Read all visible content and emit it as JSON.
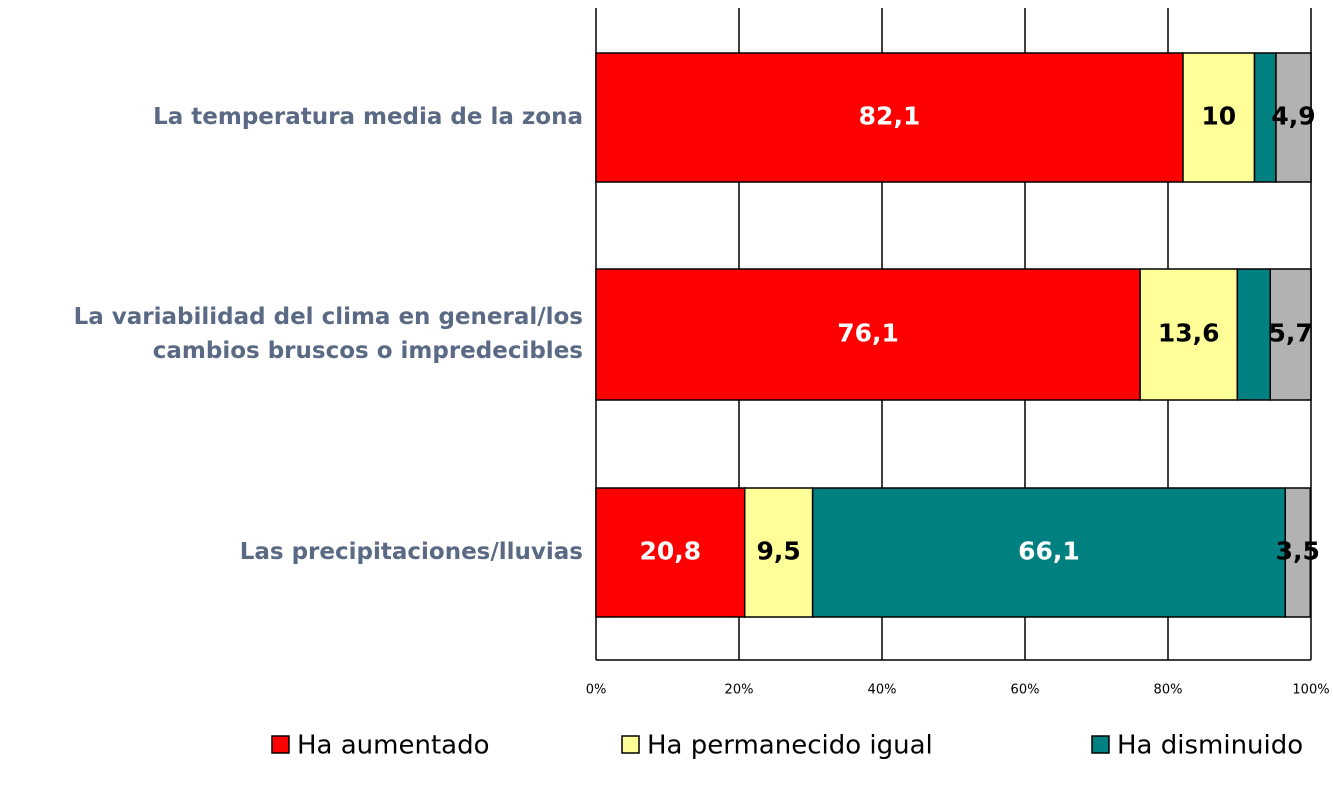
{
  "chart_data": {
    "type": "stacked-bar-horizontal",
    "categories": [
      "La temperatura media de la zona",
      "La variabilidad del clima en general/los cambios bruscos o impredecibles",
      "Las precipitaciones/lluvias"
    ],
    "category_lines": [
      [
        "La temperatura media de la zona"
      ],
      [
        "La variabilidad del clima en general/los",
        "cambios bruscos o impredecibles"
      ],
      [
        "Las precipitaciones/lluvias"
      ]
    ],
    "series": [
      {
        "name": "Ha aumentado",
        "color": "#ff0000",
        "values": [
          82.1,
          76.1,
          20.8
        ],
        "value_labels": [
          "82,1",
          "76,1",
          "20,8"
        ]
      },
      {
        "name": "Ha permanecido igual",
        "color": "#ffff99",
        "values": [
          10,
          13.6,
          9.5
        ],
        "value_labels": [
          "10",
          "13,6",
          "9,5"
        ]
      },
      {
        "name": "Ha disminuido",
        "color": "#008080",
        "values": [
          3,
          4.6,
          66.1
        ],
        "value_labels": [
          null,
          null,
          "66,1"
        ]
      },
      {
        "color": "#b2b2b2",
        "values": [
          4.9,
          5.7,
          3.5
        ],
        "value_labels": [
          "4,9",
          "5,7",
          "3,5"
        ]
      }
    ],
    "xlim": [
      0,
      100
    ],
    "xticks": [
      {
        "value": 0,
        "label": "0%"
      },
      {
        "value": 20,
        "label": "20%"
      },
      {
        "value": 40,
        "label": "40%"
      },
      {
        "value": 60,
        "label": "60%"
      },
      {
        "value": 80,
        "label": "80%"
      },
      {
        "value": 100,
        "label": "100%"
      }
    ],
    "grid": true,
    "legend": "bottom"
  }
}
